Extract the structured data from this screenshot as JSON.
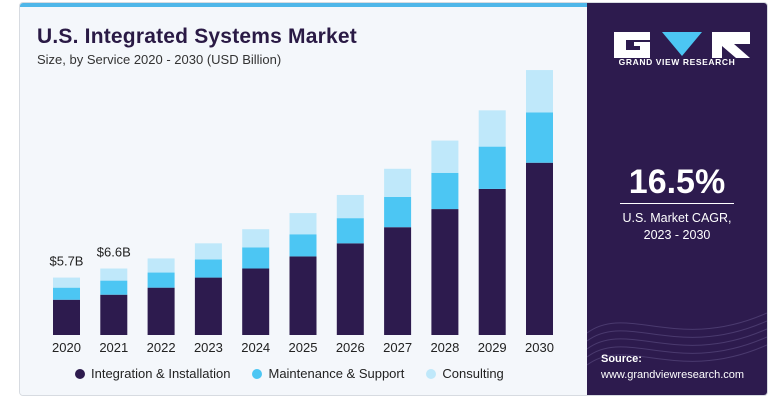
{
  "header": {
    "title": "U.S. Integrated Systems Market",
    "subtitle": "Size, by Service 2020 - 2030 (USD Billion)"
  },
  "colors": {
    "integration": "#2d1b4e",
    "maintenance": "#4cc6f3",
    "consulting": "#bfe8fa",
    "panel": "#2d1b4e",
    "accent": "#4fb7e9"
  },
  "chart_data": {
    "type": "bar",
    "stacked": true,
    "categories": [
      "2020",
      "2021",
      "2022",
      "2023",
      "2024",
      "2025",
      "2026",
      "2027",
      "2028",
      "2029",
      "2030"
    ],
    "series": [
      {
        "name": "Integration & Installation",
        "values": [
          3.5,
          4.0,
          4.7,
          5.7,
          6.6,
          7.8,
          9.1,
          10.7,
          12.5,
          14.5,
          17.1
        ]
      },
      {
        "name": "Maintenance & Support",
        "values": [
          1.2,
          1.4,
          1.5,
          1.8,
          2.1,
          2.2,
          2.5,
          3.0,
          3.6,
          4.2,
          5.0
        ]
      },
      {
        "name": "Consulting",
        "values": [
          1.0,
          1.2,
          1.4,
          1.6,
          1.8,
          2.1,
          2.3,
          2.8,
          3.2,
          3.6,
          4.2
        ]
      }
    ],
    "data_labels": [
      {
        "category": "2020",
        "text": "$5.7B"
      },
      {
        "category": "2021",
        "text": "$6.6B"
      }
    ],
    "ylim": [
      0,
      27
    ],
    "grid": false,
    "legend": "bottom"
  },
  "legend": {
    "items": [
      {
        "label": "Integration & Installation",
        "color": "#2d1b4e"
      },
      {
        "label": "Maintenance & Support",
        "color": "#4cc6f3"
      },
      {
        "label": "Consulting",
        "color": "#bfe8fa"
      }
    ]
  },
  "sidebar": {
    "brand": "GRAND VIEW RESEARCH",
    "cagr_value": "16.5%",
    "cagr_label_line1": "U.S. Market CAGR,",
    "cagr_label_line2": "2023 - 2030",
    "source_label": "Source:",
    "source_url": "www.grandviewresearch.com"
  }
}
